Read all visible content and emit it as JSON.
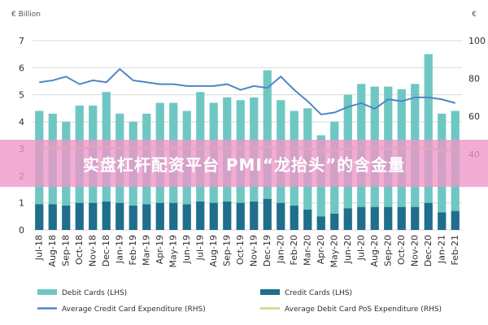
{
  "banner": {
    "text": "实盘杠杆配资平台 PMI“龙抬头”的含金量"
  },
  "chart_data": {
    "type": "bar",
    "left_unit": "€ Billion",
    "right_unit": "€",
    "categories": [
      "Jul-18",
      "Aug-18",
      "Sep-18",
      "Oct-18",
      "Nov-18",
      "Dec-18",
      "Jan-19",
      "Feb-19",
      "Mar-19",
      "Apr-19",
      "May-19",
      "Jun-19",
      "Jul-19",
      "Aug-19",
      "Sep-19",
      "Oct-19",
      "Nov-19",
      "Dec-19",
      "Jan-20",
      "Feb-20",
      "Mar-20",
      "Apr-20",
      "May-20",
      "Jun-20",
      "Jul-20",
      "Aug-20",
      "Sep-20",
      "Oct-20",
      "Nov-20",
      "Dec-20",
      "Jan-21",
      "Feb-21"
    ],
    "left_axis": {
      "min": 0,
      "max": 7,
      "ticks": [
        "0",
        "1",
        "2",
        "3",
        "4",
        "5",
        "6",
        "7"
      ]
    },
    "right_axis": {
      "min": 0,
      "max": 100,
      "ticks": [
        "40",
        "60",
        "80",
        "100"
      ]
    },
    "series": [
      {
        "name": "Debit Cards (LHS)",
        "kind": "bar",
        "axis": "left",
        "color": "#6fc7c3",
        "values": [
          4.4,
          4.3,
          4.0,
          4.6,
          4.6,
          5.1,
          4.3,
          4.0,
          4.3,
          4.7,
          4.7,
          4.4,
          5.1,
          4.7,
          4.9,
          4.8,
          4.9,
          5.9,
          4.8,
          4.4,
          4.5,
          3.5,
          4.0,
          5.0,
          5.4,
          5.3,
          5.3,
          5.2,
          5.4,
          6.5,
          4.3,
          4.4
        ]
      },
      {
        "name": "Credit Cards (LHS)",
        "kind": "bar",
        "axis": "left",
        "color": "#1f6e8c",
        "values": [
          0.95,
          0.95,
          0.9,
          1.0,
          1.0,
          1.05,
          1.0,
          0.9,
          0.95,
          1.0,
          1.0,
          0.95,
          1.05,
          1.0,
          1.05,
          1.0,
          1.05,
          1.15,
          1.0,
          0.9,
          0.75,
          0.5,
          0.6,
          0.8,
          0.85,
          0.85,
          0.85,
          0.85,
          0.85,
          1.0,
          0.65,
          0.7
        ]
      },
      {
        "name": "Average Credit Card Expenditure (RHS)",
        "kind": "line",
        "axis": "right",
        "color": "#4f86c6",
        "values": [
          78,
          79,
          81,
          77,
          79,
          78,
          85,
          79,
          78,
          77,
          77,
          76,
          76,
          76,
          77,
          74,
          76,
          75,
          81,
          74,
          68,
          61,
          62,
          65,
          67,
          64,
          69,
          68,
          70,
          70,
          69,
          67
        ]
      },
      {
        "name": "Average Debit Card PoS Expenditure (RHS)",
        "kind": "line",
        "axis": "right",
        "color": "#cfd97a",
        "values": [
          43,
          43,
          43,
          43,
          44,
          44,
          43,
          43,
          43,
          43,
          43,
          43,
          43,
          43,
          43,
          43,
          43,
          44,
          43,
          43,
          43,
          42,
          42,
          43,
          43,
          43,
          43,
          43,
          43,
          43,
          42,
          42
        ]
      }
    ]
  }
}
